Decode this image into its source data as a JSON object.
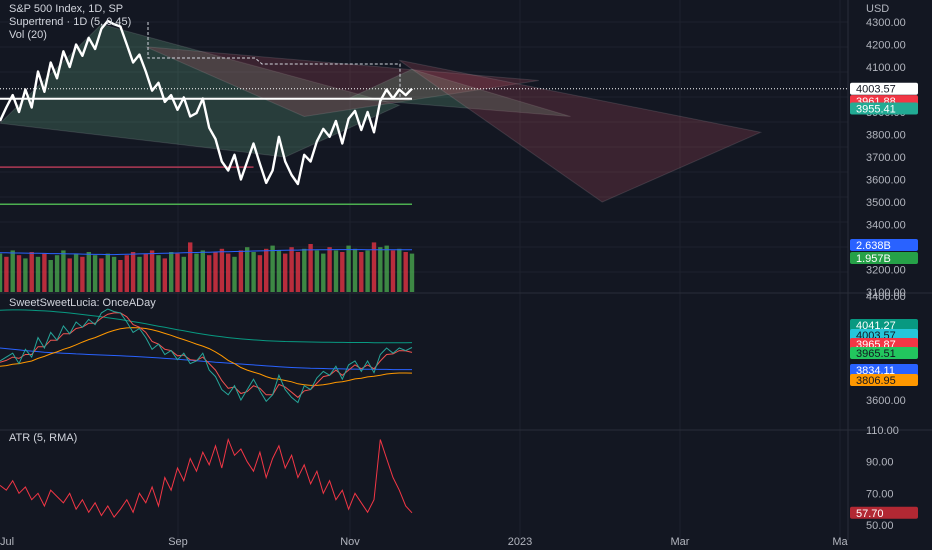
{
  "currency": "USD",
  "legends": {
    "main_title": "S&P 500 Index, 1D, SP",
    "supertrend": "Supertrend · 1D (5, 0.45)",
    "vol": "Vol (20)",
    "indicator": "SweetSweetLucia: OnceADay",
    "atr": "ATR (5, RMA)"
  },
  "axes": {
    "price_ticks": [
      "4300.00",
      "4200.00",
      "4100.00",
      "3900.00",
      "3800.00",
      "3700.00",
      "3600.00",
      "3500.00",
      "3400.00",
      "3300.00",
      "3200.00",
      "3100.00"
    ],
    "indicator_ticks": [
      "4400.00",
      "3600.00"
    ],
    "atr_ticks": [
      "110.00",
      "90.00",
      "70.00",
      "50.00"
    ],
    "x_ticks": [
      "Jul",
      "Sep",
      "Nov",
      "2023",
      "Mar",
      "Ma"
    ]
  },
  "badges": {
    "price": [
      {
        "text": "4003.57",
        "bg": "#ffffff",
        "fg": "#131722"
      },
      {
        "text": "3961.88",
        "bg": "#f23645",
        "fg": "#ffffff"
      },
      {
        "text": "3955.41",
        "bg": "#22ab94",
        "fg": "#ffffff"
      }
    ],
    "volume": [
      {
        "text": "2.638B",
        "bg": "#2962ff",
        "fg": "#ffffff"
      },
      {
        "text": "1.957B",
        "bg": "#26a148",
        "fg": "#ffffff"
      }
    ],
    "indicator": [
      {
        "text": "4041.27",
        "bg": "#089981",
        "fg": "#ffffff"
      },
      {
        "text": "4003.57",
        "bg": "#26c6da",
        "fg": "#131722"
      },
      {
        "text": "3965.87",
        "bg": "#f23645",
        "fg": "#ffffff"
      },
      {
        "text": "3965.51",
        "bg": "#22c55e",
        "fg": "#131722"
      },
      {
        "text": "3834.11",
        "bg": "#2962ff",
        "fg": "#ffffff"
      },
      {
        "text": "3806.95",
        "bg": "#ff9800",
        "fg": "#131722"
      }
    ],
    "atr": [
      {
        "text": "57.70",
        "bg": "#b22833",
        "fg": "#ffffff"
      }
    ]
  },
  "chart_data": {
    "type": "line",
    "title": "S&P 500 Index, 1D, SP",
    "x_range": [
      "Jul",
      "Ma"
    ],
    "price": {
      "ylim": [
        3050,
        4400
      ],
      "close": [
        3860,
        3920,
        3975,
        3900,
        4000,
        3920,
        4080,
        3990,
        4120,
        4050,
        4170,
        4100,
        4200,
        4150,
        4230,
        4180,
        4270,
        4305,
        4290,
        4280,
        4200,
        4120,
        4155,
        4080,
        3995,
        4030,
        3945,
        3975,
        3910,
        3965,
        3880,
        3895,
        3960,
        3830,
        3780,
        3680,
        3640,
        3710,
        3600,
        3680,
        3760,
        3670,
        3585,
        3640,
        3790,
        3680,
        3620,
        3580,
        3710,
        3680,
        3770,
        3825,
        3790,
        3860,
        3760,
        3870,
        3905,
        3820,
        3900,
        3810,
        3950,
        4000,
        3960,
        4000,
        3975,
        4003.57
      ],
      "supertrend": [
        {
          "x": 0,
          "y": 3785,
          "trend": "down"
        },
        {
          "x": 21,
          "y": 4305,
          "trend": "down"
        },
        {
          "x": 21,
          "y": 4165,
          "trend": "down"
        },
        {
          "x": 40,
          "y": 4135,
          "trend": "down"
        },
        {
          "x": 40,
          "y": 4110,
          "trend": "down"
        },
        {
          "x": 65,
          "y": 4110,
          "trend": "down"
        }
      ],
      "levels": [
        {
          "name": "red-support",
          "y": 3655,
          "x0": 0,
          "x1": 40,
          "color": "#b03a55"
        },
        {
          "name": "green-support",
          "y": 3490,
          "x0": 0,
          "x1": 65,
          "color": "#4caf50"
        },
        {
          "name": "last-close",
          "y": 4003.57,
          "color": "#ffffff"
        }
      ],
      "cones": [
        {
          "color": "green",
          "points": [
            [
              0,
              3850
            ],
            [
              16,
              4290
            ],
            [
              63,
              3930
            ],
            [
              45,
              3700
            ]
          ]
        },
        {
          "color": "red",
          "points": [
            [
              23,
              4190
            ],
            [
              85,
              4040
            ],
            [
              48,
              3880
            ]
          ]
        },
        {
          "color": "green",
          "points": [
            [
              55,
              3960
            ],
            [
              65,
              4090
            ],
            [
              90,
              3880
            ]
          ]
        },
        {
          "color": "red",
          "points": [
            [
              63,
              4130
            ],
            [
              120,
              3810
            ],
            [
              95,
              3500
            ]
          ]
        }
      ]
    },
    "volume": {
      "values": [
        2.4,
        2.2,
        2.6,
        2.3,
        2.1,
        2.5,
        2.2,
        2.4,
        2.0,
        2.3,
        2.6,
        2.1,
        2.4,
        2.2,
        2.5,
        2.3,
        2.1,
        2.4,
        2.2,
        2.0,
        2.3,
        2.5,
        2.2,
        2.4,
        2.6,
        2.3,
        2.1,
        2.5,
        2.4,
        2.2,
        3.1,
        2.4,
        2.6,
        2.3,
        2.5,
        2.7,
        2.4,
        2.2,
        2.6,
        2.8,
        2.5,
        2.3,
        2.7,
        2.9,
        2.6,
        2.4,
        2.8,
        2.5,
        2.7,
        3.0,
        2.6,
        2.4,
        2.8,
        2.6,
        2.5,
        2.9,
        2.7,
        2.5,
        2.6,
        3.1,
        2.8,
        2.9,
        2.6,
        2.7,
        2.5,
        2.4
      ],
      "up": [
        1,
        0,
        1,
        0,
        1,
        0,
        1,
        0,
        1,
        1,
        1,
        0,
        1,
        0,
        1,
        1,
        0,
        1,
        1,
        0,
        0,
        0,
        1,
        0,
        0,
        1,
        0,
        1,
        0,
        1,
        0,
        1,
        1,
        0,
        0,
        0,
        0,
        1,
        0,
        1,
        1,
        0,
        0,
        1,
        1,
        0,
        0,
        0,
        1,
        0,
        1,
        1,
        0,
        1,
        0,
        1,
        1,
        0,
        1,
        0,
        1,
        1,
        0,
        1,
        0,
        1
      ],
      "ma20": [
        2.45,
        2.45,
        2.44,
        2.44,
        2.43,
        2.42,
        2.42,
        2.41,
        2.4,
        2.4,
        2.39,
        2.38,
        2.38,
        2.37,
        2.36,
        2.35,
        2.35,
        2.34,
        2.34,
        2.35,
        2.36,
        2.37,
        2.38,
        2.39,
        2.4,
        2.41,
        2.42,
        2.43,
        2.44,
        2.45,
        2.46,
        2.47,
        2.48,
        2.49,
        2.5,
        2.51,
        2.52,
        2.53,
        2.54,
        2.55,
        2.56,
        2.57,
        2.58,
        2.59,
        2.6,
        2.61,
        2.62,
        2.62,
        2.63,
        2.63,
        2.64,
        2.64,
        2.64,
        2.65,
        2.65,
        2.65,
        2.65,
        2.65,
        2.64,
        2.64,
        2.64,
        2.64,
        2.64,
        2.64,
        2.64,
        2.638
      ]
    },
    "oscillator": {
      "series": [
        {
          "name": "close",
          "color": "#26a69a",
          "values": [
            3900,
            3930,
            3960,
            3880,
            3990,
            3930,
            4080,
            4000,
            4120,
            4060,
            4170,
            4110,
            4200,
            4160,
            4220,
            4180,
            4270,
            4300,
            4280,
            4270,
            4200,
            4120,
            4150,
            4080,
            3990,
            4030,
            3950,
            3980,
            3910,
            3960,
            3880,
            3900,
            3960,
            3830,
            3780,
            3680,
            3640,
            3710,
            3600,
            3680,
            3760,
            3670,
            3590,
            3640,
            3790,
            3680,
            3620,
            3580,
            3710,
            3680,
            3770,
            3820,
            3790,
            3860,
            3760,
            3870,
            3900,
            3820,
            3900,
            3810,
            3950,
            4000,
            3960,
            4000,
            3980,
            4003.57
          ]
        },
        {
          "name": "fast",
          "color": "#ef5350",
          "values": [
            3890,
            3905,
            3930,
            3920,
            3950,
            3950,
            4010,
            4010,
            4060,
            4060,
            4110,
            4110,
            4150,
            4160,
            4190,
            4190,
            4230,
            4260,
            4270,
            4270,
            4240,
            4180,
            4160,
            4120,
            4050,
            4030,
            3990,
            3980,
            3940,
            3945,
            3910,
            3905,
            3930,
            3880,
            3830,
            3750,
            3690,
            3700,
            3650,
            3665,
            3710,
            3690,
            3640,
            3640,
            3720,
            3700,
            3660,
            3620,
            3670,
            3680,
            3730,
            3780,
            3790,
            3830,
            3790,
            3830,
            3870,
            3840,
            3870,
            3840,
            3900,
            3950,
            3955,
            3980,
            3978,
            3965.87
          ]
        },
        {
          "name": "slow",
          "color": "#ff9800",
          "values": [
            3860,
            3865,
            3875,
            3880,
            3890,
            3900,
            3920,
            3935,
            3955,
            3970,
            3990,
            4005,
            4025,
            4045,
            4065,
            4080,
            4100,
            4120,
            4135,
            4148,
            4155,
            4157,
            4155,
            4150,
            4140,
            4128,
            4112,
            4098,
            4080,
            4065,
            4048,
            4030,
            4015,
            3995,
            3970,
            3940,
            3905,
            3880,
            3850,
            3830,
            3815,
            3800,
            3780,
            3765,
            3760,
            3750,
            3740,
            3725,
            3718,
            3712,
            3712,
            3718,
            3725,
            3735,
            3740,
            3750,
            3762,
            3768,
            3778,
            3782,
            3790,
            3800,
            3805,
            3808,
            3808,
            3806.95
          ]
        },
        {
          "name": "blue",
          "color": "#2962ff",
          "values": [
            4000,
            3995,
            3990,
            3985,
            3980,
            3976,
            3972,
            3968,
            3965,
            3962,
            3960,
            3958,
            3955,
            3953,
            3950,
            3948,
            3946,
            3944,
            3942,
            3940,
            3938,
            3935,
            3932,
            3930,
            3927,
            3924,
            3920,
            3917,
            3913,
            3910,
            3906,
            3902,
            3898,
            3895,
            3891,
            3888,
            3884,
            3880,
            3877,
            3873,
            3870,
            3866,
            3862,
            3859,
            3856,
            3853,
            3850,
            3848,
            3846,
            3844,
            3843,
            3842,
            3841,
            3840,
            3839,
            3838,
            3838,
            3837,
            3836,
            3836,
            3835,
            3835,
            3834,
            3834,
            3834,
            3834.11
          ]
        },
        {
          "name": "teal",
          "color": "#089981",
          "values": [
            4290,
            4292,
            4293,
            4293,
            4292,
            4290,
            4288,
            4285,
            4282,
            4278,
            4274,
            4269,
            4264,
            4258,
            4252,
            4246,
            4240,
            4233,
            4226,
            4219,
            4211,
            4203,
            4195,
            4186,
            4177,
            4168,
            4159,
            4150,
            4141,
            4132,
            4123,
            4115,
            4107,
            4099,
            4092,
            4086,
            4080,
            4075,
            4070,
            4066,
            4062,
            4059,
            4056,
            4054,
            4052,
            4050,
            4049,
            4048,
            4047,
            4046,
            4045,
            4044,
            4044,
            4043,
            4043,
            4042,
            4042,
            4042,
            4042,
            4041,
            4041,
            4041,
            4041,
            4041,
            4041,
            4041.27
          ]
        }
      ]
    },
    "atr": {
      "series": [
        {
          "name": "ATR",
          "color": "#f23645",
          "values": [
            75,
            72,
            78,
            70,
            74,
            66,
            70,
            62,
            72,
            68,
            64,
            70,
            60,
            66,
            58,
            64,
            56,
            62,
            55,
            60,
            66,
            58,
            70,
            64,
            74,
            62,
            80,
            72,
            86,
            78,
            92,
            84,
            96,
            88,
            100,
            86,
            104,
            94,
            98,
            90,
            84,
            96,
            80,
            92,
            100,
            86,
            94,
            80,
            88,
            76,
            84,
            70,
            78,
            66,
            72,
            60,
            70,
            64,
            58,
            66,
            104,
            92,
            80,
            72,
            62,
            57.7
          ]
        }
      ],
      "ylim": [
        45,
        112
      ]
    }
  }
}
